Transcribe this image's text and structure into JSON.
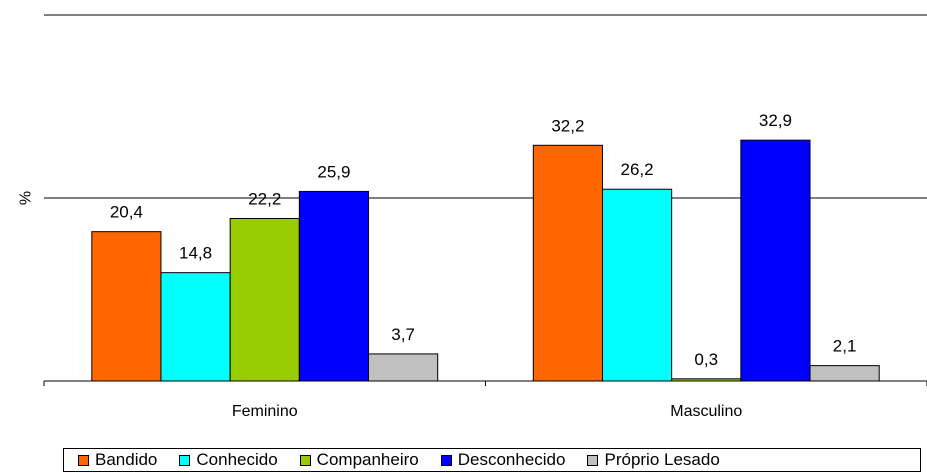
{
  "chart_data": {
    "type": "bar",
    "categories": [
      "Feminino",
      "Masculino"
    ],
    "ylabel": "%",
    "ylim": [
      0,
      50
    ],
    "gridlines": [
      25,
      50
    ],
    "legend_position": "bottom",
    "series": [
      {
        "name": "Bandido",
        "color": "#FF6600",
        "values": [
          20.4,
          32.2
        ],
        "labels": [
          "20,4",
          "32,2"
        ]
      },
      {
        "name": "Conhecido",
        "color": "#00FFFF",
        "values": [
          14.8,
          26.2
        ],
        "labels": [
          "14,8",
          "26,2"
        ]
      },
      {
        "name": "Companheiro",
        "color": "#99CC00",
        "values": [
          22.2,
          0.3
        ],
        "labels": [
          "22,2",
          "0,3"
        ]
      },
      {
        "name": "Desconhecido",
        "color": "#0000FF",
        "values": [
          25.9,
          32.9
        ],
        "labels": [
          "25,9",
          "32,9"
        ]
      },
      {
        "name": "Próprio Lesado",
        "color": "#C0C0C0",
        "values": [
          3.7,
          2.1
        ],
        "labels": [
          "3,7",
          "2,1"
        ]
      }
    ]
  }
}
